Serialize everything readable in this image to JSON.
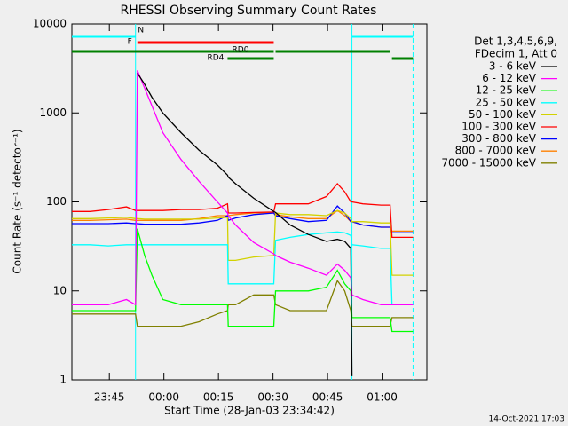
{
  "chart_data": {
    "type": "line",
    "title": "RHESSI Observing Summary Count Rates",
    "x_label": "Start Time (28-Jan-03 23:34:42)",
    "y_label": "Count Rate (s⁻¹ detector⁻¹)",
    "footer": "14-Oct-2021 17:03",
    "legend_title": [
      "Det 1,3,4,5,6,9,",
      "FDecim 1, Att 0"
    ],
    "log_y": true,
    "xlim": [
      0,
      97.6
    ],
    "xticks": [
      {
        "value": 10.3,
        "label": "23:45"
      },
      {
        "value": 25.3,
        "label": "00:00"
      },
      {
        "value": 40.3,
        "label": "00:15"
      },
      {
        "value": 55.3,
        "label": "00:30"
      },
      {
        "value": 70.3,
        "label": "00:45"
      },
      {
        "value": 85.3,
        "label": "01:00"
      }
    ],
    "ylim": [
      1,
      10000
    ],
    "yticks": [
      1,
      10,
      100,
      1000,
      10000
    ],
    "x": [
      0,
      5,
      10,
      15,
      17.5,
      18,
      20,
      22,
      25,
      30,
      35,
      40,
      42.8,
      43,
      45,
      50,
      55.5,
      56,
      60,
      65,
      70,
      73,
      75,
      76.7,
      77,
      80,
      85,
      87.5,
      88,
      90,
      93.8
    ],
    "series": [
      {
        "name": "3 - 6 keV",
        "color": "#000000",
        "values": [
          null,
          null,
          null,
          null,
          null,
          2800,
          2100,
          1500,
          1000,
          600,
          380,
          260,
          200,
          190,
          160,
          110,
          78,
          76,
          55,
          43,
          36,
          38,
          36,
          30,
          1.1,
          null,
          null,
          null,
          null,
          null,
          null
        ]
      },
      {
        "name": "6 - 12 keV",
        "color": "#ff00ff",
        "values": [
          7,
          7,
          7,
          8,
          7,
          3000,
          1900,
          1200,
          600,
          300,
          170,
          100,
          75,
          70,
          55,
          35,
          26,
          25,
          21,
          18,
          15,
          20,
          17,
          14,
          9,
          8,
          7,
          7,
          7,
          7,
          7
        ]
      },
      {
        "name": "12 - 25 keV",
        "color": "#00ff00",
        "values": [
          6,
          6,
          6,
          6,
          6,
          50,
          25,
          15,
          8,
          7,
          7,
          7,
          7,
          4,
          4,
          4,
          4,
          10,
          10,
          10,
          11,
          17,
          12,
          10,
          5,
          5,
          5,
          5,
          3.5,
          3.5,
          3.5
        ]
      },
      {
        "name": "25 - 50 keV",
        "color": "#00ffff",
        "values": [
          33,
          33,
          32,
          33,
          33,
          33,
          33,
          33,
          33,
          33,
          33,
          33,
          33,
          12,
          12,
          12,
          12,
          37,
          40,
          43,
          45,
          46,
          45,
          42,
          33,
          32,
          30,
          30,
          7,
          7,
          7
        ]
      },
      {
        "name": "50 - 100 keV",
        "color": "#d2d200",
        "values": [
          65,
          65,
          66,
          67,
          65,
          65,
          64,
          64,
          64,
          64,
          64,
          66,
          67,
          22,
          22,
          24,
          25,
          75,
          72,
          72,
          70,
          80,
          75,
          65,
          60,
          60,
          58,
          58,
          15,
          15,
          15
        ]
      },
      {
        "name": "100 - 300 keV",
        "color": "#ff0000",
        "values": [
          78,
          78,
          82,
          88,
          80,
          80,
          80,
          80,
          80,
          82,
          82,
          85,
          95,
          75,
          75,
          76,
          77,
          95,
          95,
          95,
          115,
          160,
          130,
          100,
          100,
          95,
          92,
          92,
          40,
          40,
          40
        ]
      },
      {
        "name": "300 - 800 keV",
        "color": "#0000ff",
        "values": [
          57,
          57,
          57,
          58,
          57,
          57,
          56,
          56,
          56,
          56,
          58,
          62,
          70,
          62,
          66,
          72,
          75,
          70,
          65,
          60,
          62,
          90,
          75,
          60,
          60,
          55,
          52,
          52,
          45,
          45,
          45
        ]
      },
      {
        "name": "800 - 7000 keV",
        "color": "#ff8000",
        "values": [
          62,
          62,
          63,
          64,
          62,
          62,
          62,
          62,
          62,
          62,
          65,
          70,
          70,
          70,
          72,
          75,
          75,
          72,
          68,
          65,
          65,
          80,
          70,
          60,
          60,
          55,
          52,
          52,
          47,
          47,
          47
        ]
      },
      {
        "name": "7000 - 15000 keV",
        "color": "#808000",
        "values": [
          5.5,
          5.5,
          5.5,
          5.5,
          5.5,
          4,
          4,
          4,
          4,
          4,
          4.5,
          5.5,
          6,
          7,
          7,
          9,
          9,
          7,
          6,
          6,
          6,
          13,
          10,
          6,
          4,
          4,
          4,
          4,
          5,
          5,
          5
        ]
      }
    ],
    "flags": [
      {
        "label": "N",
        "color": "#00ffff",
        "spans": [
          [
            0,
            17.5
          ],
          [
            77,
            93.8
          ]
        ]
      },
      {
        "label": "F",
        "color": "#ff0000",
        "spans": [
          [
            18,
            55.5
          ]
        ]
      },
      {
        "label": "RD0",
        "color": "#008000",
        "spans": [
          [
            0,
            55.5
          ],
          [
            56,
            87.5
          ]
        ]
      },
      {
        "label": "RD4",
        "color": "#008000",
        "spans": [
          [
            42.8,
            55.5
          ],
          [
            88,
            93.8
          ]
        ]
      }
    ]
  }
}
